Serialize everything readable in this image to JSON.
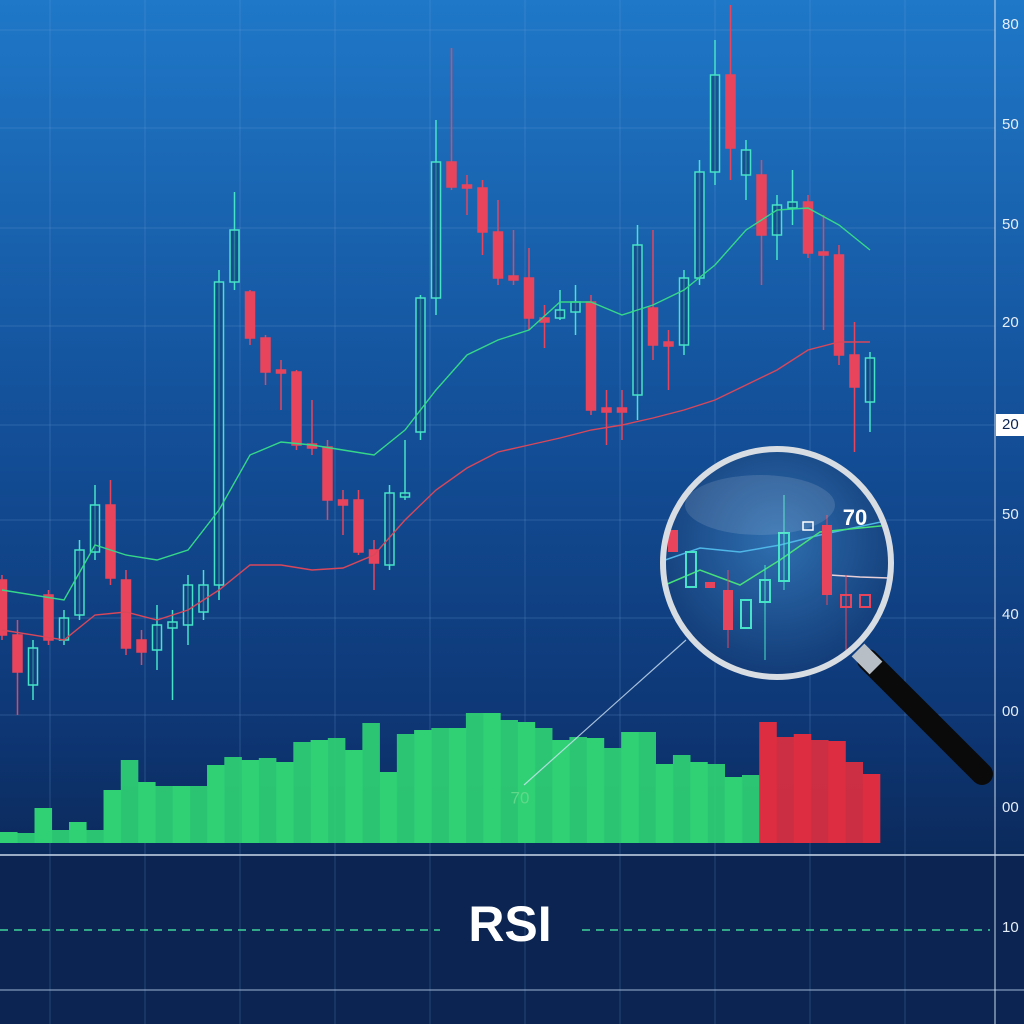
{
  "chart_data": {
    "type": "candlestick",
    "ylim": [
      0,
      850
    ],
    "open": [
      270,
      215,
      165,
      255,
      210,
      235,
      298,
      345,
      270,
      210,
      200,
      222,
      225,
      238,
      265,
      568,
      558,
      512,
      480,
      478,
      406,
      403,
      350,
      350,
      300,
      285,
      353,
      418,
      552,
      688,
      665,
      662,
      618,
      574,
      572,
      532,
      532,
      538,
      548,
      442,
      442,
      455,
      542,
      508,
      505,
      572,
      678,
      775,
      675,
      675,
      615,
      642,
      648,
      598,
      595,
      495,
      448
    ],
    "high": [
      275,
      230,
      210,
      260,
      240,
      310,
      365,
      370,
      280,
      220,
      245,
      240,
      275,
      280,
      580,
      658,
      560,
      515,
      490,
      480,
      450,
      410,
      360,
      360,
      310,
      365,
      410,
      555,
      730,
      802,
      675,
      670,
      650,
      620,
      602,
      545,
      560,
      565,
      555,
      460,
      460,
      625,
      620,
      520,
      580,
      690,
      810,
      845,
      710,
      690,
      655,
      680,
      655,
      635,
      605,
      528,
      498
    ],
    "low": [
      210,
      135,
      150,
      205,
      205,
      230,
      290,
      265,
      195,
      185,
      180,
      150,
      205,
      230,
      250,
      560,
      505,
      465,
      440,
      400,
      395,
      330,
      315,
      295,
      260,
      280,
      350,
      410,
      535,
      660,
      635,
      595,
      565,
      565,
      520,
      502,
      530,
      515,
      435,
      405,
      410,
      430,
      490,
      460,
      495,
      565,
      665,
      670,
      650,
      565,
      590,
      625,
      592,
      520,
      485,
      398,
      418
    ],
    "close": [
      215,
      178,
      202,
      210,
      232,
      300,
      345,
      272,
      202,
      198,
      225,
      228,
      265,
      265,
      568,
      620,
      512,
      478,
      477,
      405,
      402,
      350,
      345,
      298,
      287,
      357,
      357,
      552,
      688,
      663,
      662,
      618,
      572,
      570,
      532,
      528,
      540,
      548,
      440,
      438,
      438,
      605,
      505,
      504,
      572,
      678,
      775,
      702,
      700,
      615,
      645,
      648,
      597,
      595,
      495,
      463,
      492
    ],
    "up_color": "#46e3c8",
    "down_color": "#e8455c",
    "moving_averages": [
      {
        "color": "#35d889",
        "x": [
          0,
          4,
          6,
          8,
          10,
          12,
          14,
          16,
          18,
          20,
          22,
          24,
          26,
          28,
          30,
          32,
          34,
          36,
          38,
          40,
          42,
          44,
          46,
          48,
          50,
          52,
          54,
          56
        ],
        "values": [
          260,
          250,
          305,
          295,
          290,
          300,
          340,
          395,
          408,
          405,
          400,
          395,
          420,
          460,
          495,
          510,
          520,
          548,
          548,
          535,
          545,
          560,
          585,
          620,
          640,
          642,
          625,
          600
        ]
      },
      {
        "color": "#d9475a",
        "x": [
          0,
          4,
          6,
          8,
          10,
          12,
          14,
          16,
          18,
          20,
          22,
          24,
          26,
          28,
          30,
          32,
          34,
          36,
          38,
          40,
          42,
          44,
          46,
          48,
          50,
          52,
          54,
          56
        ],
        "values": [
          220,
          210,
          235,
          238,
          230,
          240,
          260,
          285,
          285,
          280,
          282,
          295,
          330,
          360,
          382,
          398,
          405,
          412,
          420,
          425,
          432,
          440,
          450,
          465,
          480,
          500,
          508,
          508
        ]
      }
    ],
    "volume_lim": [
      0,
      843
    ],
    "volume_up": [
      11,
      10,
      35,
      13,
      21,
      13,
      53,
      83,
      61,
      57,
      57,
      57,
      78,
      86,
      83,
      85,
      81,
      101,
      103,
      105,
      93,
      120,
      71,
      109,
      113,
      115,
      115,
      130,
      130,
      123,
      121,
      115,
      103,
      106,
      105,
      95,
      111,
      111,
      79,
      88,
      81,
      79,
      66,
      68,
      null,
      null,
      null,
      null,
      null,
      null,
      null
    ],
    "volume_down": [
      null,
      null,
      null,
      null,
      null,
      null,
      null,
      null,
      null,
      null,
      null,
      null,
      null,
      null,
      null,
      null,
      null,
      null,
      null,
      null,
      null,
      null,
      null,
      null,
      null,
      null,
      null,
      null,
      null,
      null,
      null,
      null,
      null,
      null,
      null,
      null,
      null,
      null,
      null,
      null,
      null,
      null,
      null,
      null,
      121,
      106,
      109,
      103,
      102,
      81,
      69
    ],
    "volume_up_color": "#2fd174",
    "volume_down_color": "#dc2e40",
    "axis_labels": [
      "80",
      "50",
      "50",
      "20",
      "20",
      "50",
      "40",
      "00",
      "00",
      "10"
    ],
    "annotation": "70",
    "lens_label": "70",
    "indicator_label": "RSI"
  }
}
